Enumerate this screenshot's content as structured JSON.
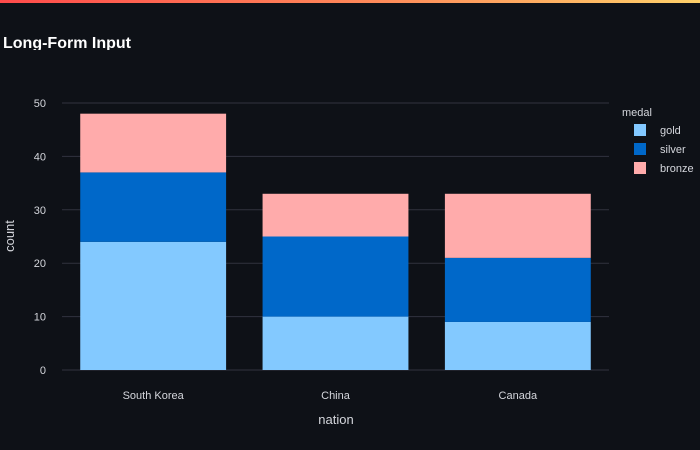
{
  "chart_data": {
    "type": "bar",
    "stacked": true,
    "title": "Long-Form Input",
    "xlabel": "nation",
    "ylabel": "count",
    "categories": [
      "South Korea",
      "China",
      "Canada"
    ],
    "series": [
      {
        "name": "gold",
        "values": [
          24,
          10,
          9
        ],
        "color": "#83c9ff"
      },
      {
        "name": "silver",
        "values": [
          13,
          15,
          12
        ],
        "color": "#0068c9"
      },
      {
        "name": "bronze",
        "values": [
          11,
          8,
          12
        ],
        "color": "#ffabab"
      }
    ],
    "ylim": [
      0,
      50
    ],
    "yticks": [
      0,
      10,
      20,
      30,
      40,
      50
    ],
    "grid": true,
    "legend": {
      "title": "medal",
      "position": "right"
    }
  },
  "colors": {
    "background": "#0e1117",
    "grid": "#31333f",
    "text": "#d4d6dc",
    "title": "#ffffff"
  }
}
